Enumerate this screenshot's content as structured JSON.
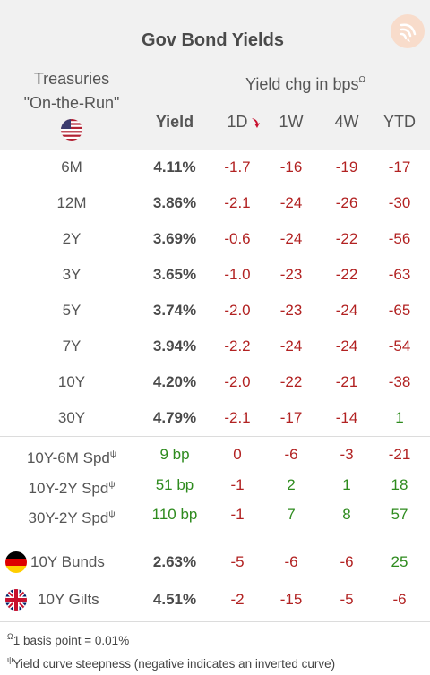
{
  "title": "Gov Bond Yields",
  "header": {
    "treasuries_line1": "Treasuries",
    "treasuries_line2": "\"On-the-Run\"",
    "yield_chg": "Yield chg in bps",
    "yield_chg_sup": "Ω",
    "yield": "Yield",
    "col_1d": "1D",
    "col_1w": "1W",
    "col_4w": "4W",
    "col_ytd": "YTD"
  },
  "treasuries": [
    {
      "label": "6M",
      "yield": "4.11%",
      "d1": "-1.7",
      "w1": "-16",
      "w4": "-19",
      "ytd": "-17"
    },
    {
      "label": "12M",
      "yield": "3.86%",
      "d1": "-2.1",
      "w1": "-24",
      "w4": "-26",
      "ytd": "-30"
    },
    {
      "label": "2Y",
      "yield": "3.69%",
      "d1": "-0.6",
      "w1": "-24",
      "w4": "-22",
      "ytd": "-56"
    },
    {
      "label": "3Y",
      "yield": "3.65%",
      "d1": "-1.0",
      "w1": "-23",
      "w4": "-22",
      "ytd": "-63"
    },
    {
      "label": "5Y",
      "yield": "3.74%",
      "d1": "-2.0",
      "w1": "-23",
      "w4": "-24",
      "ytd": "-65"
    },
    {
      "label": "7Y",
      "yield": "3.94%",
      "d1": "-2.2",
      "w1": "-24",
      "w4": "-24",
      "ytd": "-54"
    },
    {
      "label": "10Y",
      "yield": "4.20%",
      "d1": "-2.0",
      "w1": "-22",
      "w4": "-21",
      "ytd": "-38"
    },
    {
      "label": "30Y",
      "yield": "4.79%",
      "d1": "-2.1",
      "w1": "-17",
      "w4": "-14",
      "ytd": "1"
    }
  ],
  "spreads": [
    {
      "label": "10Y-6M Spd",
      "sup": "ψ",
      "value": "9 bp",
      "d1": "0",
      "w1": "-6",
      "w4": "-3",
      "ytd": "-21"
    },
    {
      "label": "10Y-2Y Spd",
      "sup": "ψ",
      "value": "51 bp",
      "d1": "-1",
      "w1": "2",
      "w4": "1",
      "ytd": "18"
    },
    {
      "label": "30Y-2Y Spd",
      "sup": "ψ",
      "value": "110 bp",
      "d1": "-1",
      "w1": "7",
      "w4": "8",
      "ytd": "57"
    }
  ],
  "foreign": [
    {
      "label": "10Y Bunds",
      "yield": "2.63%",
      "d1": "-5",
      "w1": "-6",
      "w4": "-6",
      "ytd": "25"
    },
    {
      "label": "10Y Gilts",
      "yield": "4.51%",
      "d1": "-2",
      "w1": "-15",
      "w4": "-5",
      "ytd": "-6"
    }
  ],
  "notes": {
    "note1_sup": "Ω",
    "note1": "1 basis point = 0.01%",
    "note2_sup": "ψ",
    "note2": "Yield curve steepness (negative indicates an inverted curve)"
  },
  "colors": {
    "negative": "#b22222",
    "positive": "#2e8b1e",
    "header_bg": "#f1f1f1"
  },
  "icons": {
    "logo": "brand-logo-icon",
    "us_flag": "us-flag-icon",
    "de_flag": "germany-flag-icon",
    "uk_flag": "uk-flag-icon",
    "sort": "sort-down-arrow-icon"
  }
}
